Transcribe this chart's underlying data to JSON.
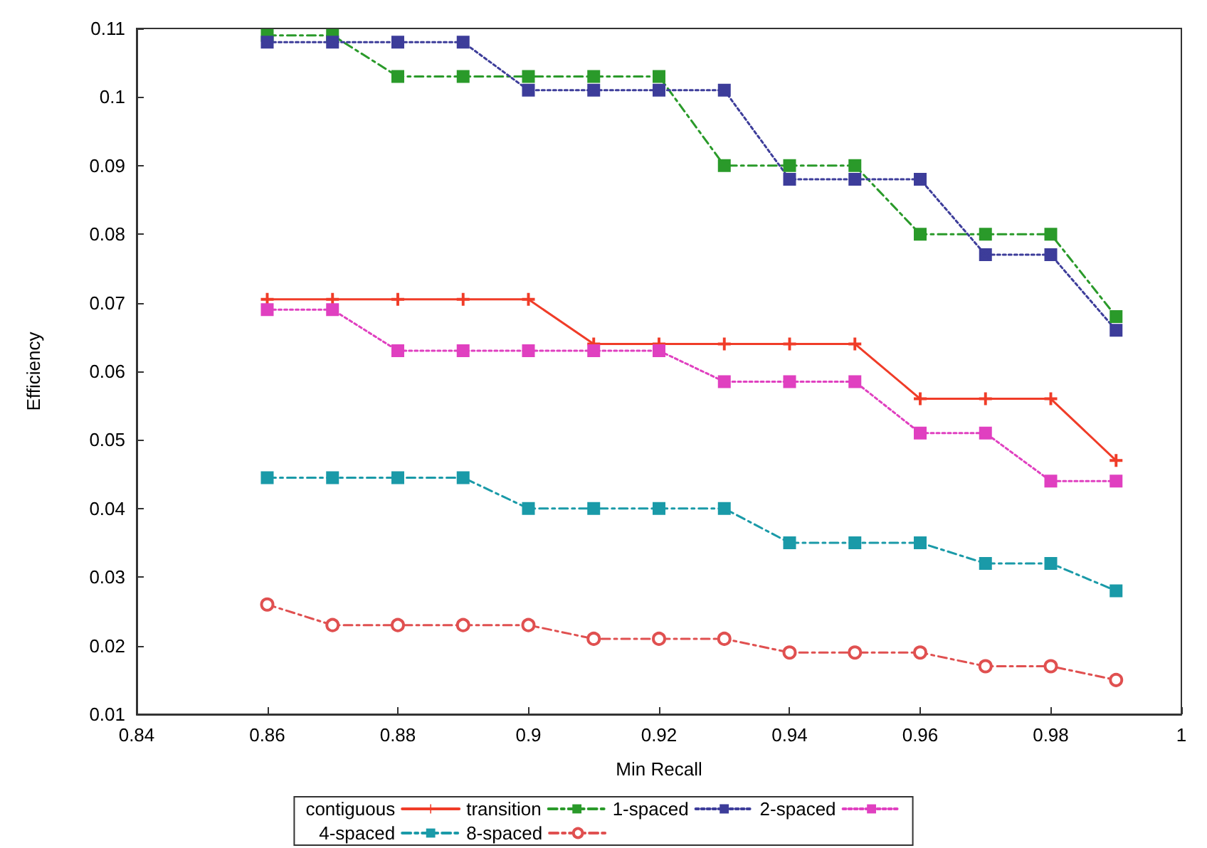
{
  "chart_data": {
    "type": "line",
    "xlabel": "Min Recall",
    "ylabel": "Efficiency",
    "x": [
      0.86,
      0.87,
      0.88,
      0.89,
      0.9,
      0.91,
      0.92,
      0.93,
      0.94,
      0.95,
      0.96,
      0.97,
      0.98,
      0.99
    ],
    "xlim": [
      0.84,
      1
    ],
    "xticks": [
      0.84,
      0.86,
      0.88,
      0.9,
      0.92,
      0.94,
      0.96,
      0.98,
      1
    ],
    "ylim": [
      0.01,
      0.11
    ],
    "yticks": [
      0.01,
      0.02,
      0.03,
      0.04,
      0.05,
      0.06,
      0.07,
      0.08,
      0.09,
      0.1,
      0.11
    ],
    "grid": false,
    "legend": "bottom",
    "series": [
      {
        "name": "contiguous",
        "color": "#f03c28",
        "marker": "cross",
        "line_style": "solid",
        "values": [
          0.0705,
          0.0705,
          0.0705,
          0.0705,
          0.0705,
          0.064,
          0.064,
          0.064,
          0.064,
          0.064,
          0.056,
          0.056,
          0.056,
          0.047
        ]
      },
      {
        "name": "transition",
        "color": "#2a9a2a",
        "marker": "square",
        "line_style": "dashed",
        "values": [
          0.109,
          0.109,
          0.103,
          0.103,
          0.103,
          0.103,
          0.103,
          0.09,
          0.09,
          0.09,
          0.08,
          0.08,
          0.08,
          0.068
        ]
      },
      {
        "name": "1-spaced",
        "color": "#3d3d9a",
        "marker": "star",
        "line_style": "dotted",
        "values": [
          0.108,
          0.108,
          0.108,
          0.108,
          0.101,
          0.101,
          0.101,
          0.101,
          0.088,
          0.088,
          0.088,
          0.077,
          0.077,
          0.066
        ]
      },
      {
        "name": "2-spaced",
        "color": "#e040c0",
        "marker": "square",
        "line_style": "dotted",
        "values": [
          0.069,
          0.069,
          0.063,
          0.063,
          0.063,
          0.063,
          0.063,
          0.0585,
          0.0585,
          0.0585,
          0.051,
          0.051,
          0.044,
          0.044
        ]
      },
      {
        "name": "4-spaced",
        "color": "#1a9aa8",
        "marker": "square",
        "line_style": "dashed",
        "values": [
          0.0445,
          0.0445,
          0.0445,
          0.0445,
          0.04,
          0.04,
          0.04,
          0.04,
          0.035,
          0.035,
          0.035,
          0.032,
          0.032,
          0.028
        ]
      },
      {
        "name": "8-spaced",
        "color": "#e05050",
        "marker": "circle",
        "line_style": "dashed",
        "values": [
          0.026,
          0.023,
          0.023,
          0.023,
          0.023,
          0.021,
          0.021,
          0.021,
          0.019,
          0.019,
          0.019,
          0.017,
          0.017,
          0.015
        ]
      }
    ]
  }
}
